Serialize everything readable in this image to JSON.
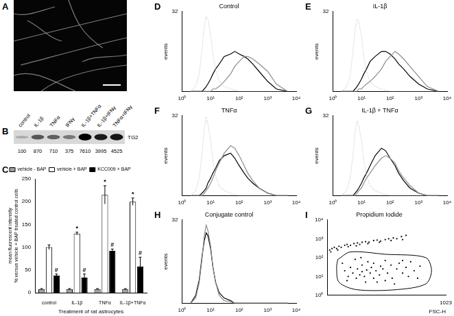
{
  "chart_data": [
    {
      "panel": "A",
      "type": "image"
    },
    {
      "panel": "B",
      "type": "blot",
      "categories": [
        "control",
        "IL-1β",
        "TNFα",
        "IFNγ",
        "IL-1β+TNFα",
        "IL-1β+IFNγ",
        "TNFα+IFNγ"
      ],
      "values": [
        100,
        870,
        710,
        375,
        7610,
        3995,
        4525
      ],
      "band_label": "TG2"
    },
    {
      "panel": "C",
      "type": "bar",
      "categories": [
        "control",
        "IL-1β",
        "TNFα",
        "IL-1β+TNFα"
      ],
      "series": [
        {
          "name": "vehicle - BAP",
          "color": "#a0a0a0",
          "values": [
            8,
            8,
            8,
            8
          ],
          "errors": [
            1,
            1,
            1,
            1
          ]
        },
        {
          "name": "vehicle + BAP",
          "color": "#ffffff",
          "values": [
            100,
            130,
            215,
            200
          ],
          "errors": [
            5,
            3,
            20,
            8
          ]
        },
        {
          "name": "KCC009 + BAP",
          "color": "#000000",
          "values": [
            38,
            33,
            92,
            58
          ],
          "errors": [
            3,
            8,
            4,
            20
          ]
        }
      ],
      "ylabel": [
        "mean fluorescent intensity",
        "% versus vehicle + BAP treated control cells"
      ],
      "xlabel": "Treatment of rat astrocytes",
      "ylim": [
        0,
        250
      ],
      "yticks": [
        0,
        50,
        100,
        150,
        200,
        250
      ],
      "grid": false,
      "legend": "top-left",
      "annotations": [
        {
          "category": "control",
          "series": "KCC009 + BAP",
          "text": "#"
        },
        {
          "category": "IL-1β",
          "series": "vehicle + BAP",
          "text": "*"
        },
        {
          "category": "IL-1β",
          "series": "KCC009 + BAP",
          "text": "#"
        },
        {
          "category": "TNFα",
          "series": "vehicle + BAP",
          "text": "*"
        },
        {
          "category": "TNFα",
          "series": "KCC009 + BAP",
          "text": "#"
        },
        {
          "category": "IL-1β+TNFα",
          "series": "vehicle + BAP",
          "text": "*"
        },
        {
          "category": "IL-1β+TNFα",
          "series": "KCC009 + BAP",
          "text": "#"
        }
      ]
    },
    {
      "panel": "D",
      "type": "line",
      "title": "Control",
      "ylabel": "events",
      "log": "x",
      "grid": false,
      "xlim": [
        1,
        10000
      ],
      "xticks": [
        {
          "value": 1,
          "label": "10⁰"
        },
        {
          "value": 10,
          "label": "10¹"
        },
        {
          "value": 100,
          "label": "10²"
        },
        {
          "value": 1000,
          "label": "10³"
        },
        {
          "value": 10000,
          "label": "10⁴"
        }
      ],
      "ylim": [
        0,
        32
      ],
      "yticks": [
        32
      ],
      "x": [
        2,
        3,
        4,
        5,
        6,
        7,
        8,
        10,
        12,
        15,
        20,
        30,
        50,
        70,
        100,
        150,
        200,
        300,
        500,
        1000,
        2000,
        5000
      ],
      "series": [
        {
          "color": "#bdbdbd",
          "line_style": "dotted",
          "values": [
            0,
            2,
            7,
            17,
            26,
            30,
            29,
            23,
            15,
            9,
            4,
            2,
            1,
            0.5,
            0,
            0,
            0,
            0,
            0,
            0,
            0,
            0
          ]
        },
        {
          "color": "#8c8c8c",
          "line_style": "solid",
          "values": [
            0,
            0,
            0,
            0,
            0,
            0,
            0,
            0,
            1,
            1,
            2,
            4,
            7,
            10,
            12,
            14,
            14,
            13,
            11,
            8,
            3,
            0
          ]
        },
        {
          "color": "#000000",
          "line_style": "solid",
          "values": [
            0,
            0,
            0,
            0,
            1,
            2,
            3,
            5,
            7,
            9,
            11,
            14,
            15,
            16,
            15,
            14,
            13,
            11,
            8,
            4,
            1,
            0
          ]
        }
      ]
    },
    {
      "panel": "E",
      "type": "line",
      "title": "IL-1β",
      "ylabel": "events",
      "log": "x",
      "grid": false,
      "xlim": [
        1,
        10000
      ],
      "xticks": [
        {
          "value": 1,
          "label": "10⁰"
        },
        {
          "value": 10,
          "label": "10¹"
        },
        {
          "value": 100,
          "label": "10²"
        },
        {
          "value": 1000,
          "label": "10³"
        },
        {
          "value": 10000,
          "label": "10⁴"
        }
      ],
      "ylim": [
        0,
        32
      ],
      "yticks": [
        32
      ],
      "x": [
        2,
        3,
        4,
        5,
        6,
        7,
        8,
        10,
        12,
        15,
        20,
        30,
        50,
        70,
        100,
        150,
        200,
        300,
        500,
        1000,
        2000,
        5000
      ],
      "series": [
        {
          "color": "#bdbdbd",
          "line_style": "dotted",
          "values": [
            0,
            2,
            6,
            16,
            25,
            29,
            28,
            22,
            14,
            8,
            4,
            2,
            1,
            0.5,
            0,
            0,
            0,
            0,
            0,
            0,
            0,
            0
          ]
        },
        {
          "color": "#8c8c8c",
          "line_style": "solid",
          "values": [
            0,
            0,
            0,
            0,
            0,
            0,
            1,
            1,
            2,
            3,
            4,
            6,
            9,
            12,
            14,
            16,
            15,
            13,
            10,
            6,
            2,
            0
          ]
        },
        {
          "color": "#000000",
          "line_style": "solid",
          "values": [
            0,
            0,
            0,
            0,
            1,
            2,
            3,
            5,
            7,
            9,
            12,
            14,
            16,
            16,
            15,
            13,
            11,
            9,
            6,
            3,
            1,
            0
          ]
        }
      ]
    },
    {
      "panel": "F",
      "type": "line",
      "title": "TNFα",
      "ylabel": "events",
      "log": "x",
      "grid": false,
      "xlim": [
        1,
        10000
      ],
      "xticks": [
        {
          "value": 1,
          "label": "10⁰"
        },
        {
          "value": 10,
          "label": "10¹"
        },
        {
          "value": 100,
          "label": "10²"
        },
        {
          "value": 1000,
          "label": "10³"
        },
        {
          "value": 10000,
          "label": "10⁴"
        }
      ],
      "ylim": [
        0,
        32
      ],
      "yticks": [
        32
      ],
      "x": [
        2,
        3,
        4,
        5,
        6,
        7,
        8,
        10,
        12,
        15,
        20,
        30,
        50,
        70,
        100,
        150,
        200,
        300,
        500,
        1000,
        2000,
        5000
      ],
      "series": [
        {
          "color": "#bdbdbd",
          "line_style": "dotted",
          "values": [
            0,
            2,
            7,
            17,
            27,
            31,
            29,
            22,
            14,
            8,
            4,
            2,
            1,
            0.5,
            0,
            0,
            0,
            0,
            0,
            0,
            0,
            0
          ]
        },
        {
          "color": "#8c8c8c",
          "line_style": "solid",
          "values": [
            0,
            0,
            0,
            0,
            1,
            2,
            3,
            5,
            7,
            10,
            13,
            17,
            20,
            19,
            16,
            12,
            9,
            6,
            3,
            1,
            0,
            0
          ]
        },
        {
          "color": "#000000",
          "line_style": "solid",
          "values": [
            0,
            0,
            0,
            1,
            2,
            3,
            5,
            7,
            9,
            11,
            14,
            16,
            17,
            15,
            12,
            9,
            7,
            5,
            3,
            1,
            0,
            0
          ]
        }
      ]
    },
    {
      "panel": "G",
      "type": "line",
      "title": "IL-1β + TNFα",
      "ylabel": "events",
      "log": "x",
      "grid": false,
      "xlim": [
        1,
        10000
      ],
      "xticks": [
        {
          "value": 1,
          "label": "10⁰"
        },
        {
          "value": 10,
          "label": "10¹"
        },
        {
          "value": 100,
          "label": "10²"
        },
        {
          "value": 1000,
          "label": "10³"
        },
        {
          "value": 10000,
          "label": "10⁴"
        }
      ],
      "ylim": [
        0,
        32
      ],
      "yticks": [
        32
      ],
      "x": [
        2,
        3,
        4,
        5,
        6,
        7,
        8,
        10,
        12,
        15,
        20,
        30,
        50,
        70,
        100,
        150,
        200,
        300,
        500,
        1000,
        2000,
        5000
      ],
      "series": [
        {
          "color": "#bdbdbd",
          "line_style": "dotted",
          "values": [
            0,
            2,
            7,
            16,
            26,
            30,
            28,
            22,
            14,
            8,
            4,
            2,
            1,
            0.5,
            0,
            0,
            0,
            0,
            0,
            0,
            0,
            0
          ]
        },
        {
          "color": "#8c8c8c",
          "line_style": "solid",
          "values": [
            0,
            0,
            0,
            0,
            0,
            1,
            2,
            3,
            5,
            7,
            9,
            12,
            15,
            16,
            15,
            13,
            10,
            7,
            4,
            1,
            0,
            0
          ]
        },
        {
          "color": "#000000",
          "line_style": "solid",
          "values": [
            0,
            0,
            0,
            0,
            1,
            2,
            3,
            5,
            7,
            9,
            12,
            16,
            19,
            18,
            15,
            12,
            9,
            6,
            3,
            1,
            0,
            0
          ]
        }
      ]
    },
    {
      "panel": "H",
      "type": "line",
      "title": "Conjugate control",
      "ylabel": "events",
      "log": "x",
      "grid": false,
      "xlim": [
        1,
        10000
      ],
      "xticks": [
        {
          "value": 1,
          "label": "10⁰"
        },
        {
          "value": 10,
          "label": "10¹"
        },
        {
          "value": 100,
          "label": "10²"
        },
        {
          "value": 1000,
          "label": "10³"
        },
        {
          "value": 10000,
          "label": "10⁴"
        }
      ],
      "ylim": [
        0,
        32
      ],
      "yticks": [
        32
      ],
      "x": [
        2,
        3,
        4,
        5,
        6,
        7,
        8,
        10,
        12,
        15,
        20,
        30,
        50,
        70,
        100,
        150,
        200,
        300,
        500,
        1000,
        2000,
        5000
      ],
      "series": [
        {
          "color": "#8c8c8c",
          "line_style": "solid",
          "values": [
            0,
            2,
            8,
            17,
            26,
            30,
            28,
            22,
            14,
            8,
            3,
            1,
            0.5,
            0,
            0,
            0,
            0,
            0,
            0,
            0,
            0,
            0
          ]
        },
        {
          "color": "#000000",
          "line_style": "solid",
          "values": [
            0,
            3,
            9,
            18,
            24,
            27,
            26,
            21,
            14,
            8,
            4,
            2,
            1,
            0,
            0,
            0,
            0,
            0,
            0,
            0,
            0,
            0
          ]
        }
      ]
    },
    {
      "panel": "I",
      "type": "scatter",
      "title": "Propidium Iodide",
      "xlabel": "FSC-H",
      "log": "y",
      "grid": false,
      "xlim": [
        0,
        1023
      ],
      "xticks": [
        1023
      ],
      "ylim": [
        1,
        10000
      ],
      "yticks": [
        {
          "value": 1,
          "label": "10⁰"
        },
        {
          "value": 10,
          "label": "10¹"
        },
        {
          "value": 100,
          "label": "10²"
        },
        {
          "value": 1000,
          "label": "10³"
        },
        {
          "value": 10000,
          "label": "10⁴"
        }
      ],
      "series": [
        {
          "color": "#000000",
          "marker": "dot",
          "x": [
            20,
            40,
            60,
            80,
            100,
            120,
            150,
            170,
            200,
            230,
            260,
            280,
            300,
            330,
            360,
            400,
            430,
            460,
            500,
            530,
            570,
            600,
            640,
            680,
            30,
            90,
            180,
            250,
            350,
            450,
            550,
            650,
            150,
            180,
            200,
            220,
            250,
            260,
            280,
            300,
            300,
            320,
            340,
            350,
            370,
            380,
            400,
            400,
            420,
            450,
            460,
            480,
            500,
            520,
            550,
            560,
            600,
            620,
            650,
            680,
            700,
            720,
            750,
            800,
            130,
            240,
            330,
            430,
            580,
            170,
            290,
            500,
            650,
            780
          ],
          "y": [
            250,
            300,
            350,
            300,
            400,
            350,
            450,
            500,
            450,
            550,
            600,
            500,
            650,
            700,
            650,
            800,
            850,
            750,
            900,
            1000,
            1100,
            1000,
            1300,
            1500,
            200,
            250,
            380,
            420,
            550,
            650,
            800,
            900,
            20,
            10,
            30,
            15,
            8,
            25,
            12,
            40,
            18,
            10,
            22,
            60,
            15,
            30,
            8,
            50,
            20,
            12,
            35,
            25,
            70,
            15,
            40,
            8,
            25,
            50,
            15,
            30,
            10,
            60,
            20,
            35,
            50,
            80,
            5,
            5,
            4,
            6,
            100,
            6,
            70,
            8
          ]
        }
      ],
      "gate": {
        "x": [
          90,
          200,
          500,
          850,
          900,
          850,
          600,
          250,
          100,
          80
        ],
        "y": [
          80,
          200,
          150,
          100,
          20,
          4,
          2,
          2,
          5,
          30
        ]
      }
    }
  ]
}
